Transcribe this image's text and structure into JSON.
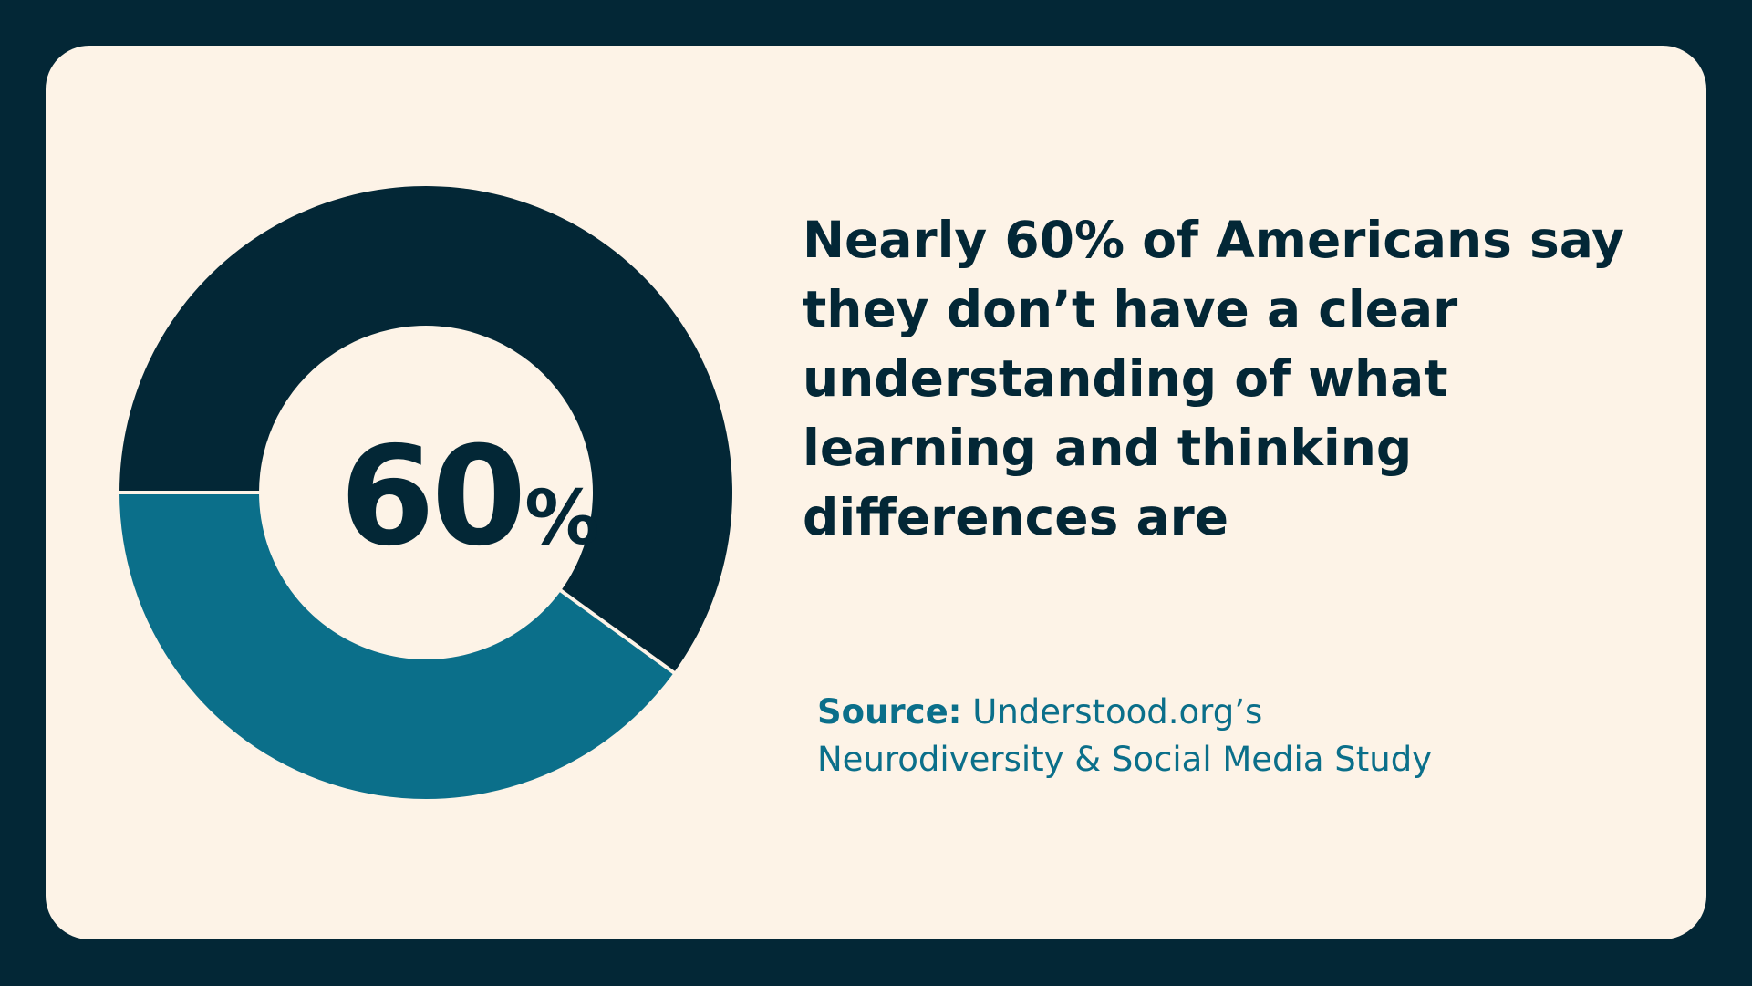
{
  "headline": "Nearly 60% of Americans say they don’t have a clear understanding of what learning and thinking differences are",
  "center_label": {
    "number": "60",
    "unit": "%"
  },
  "source": {
    "label": "Source:",
    "line1": "Understood.org’s",
    "line2": "Neurodiversity & Social Media Study"
  },
  "colors": {
    "background": "#032736",
    "card": "#fdf3e7",
    "primary": "#032736",
    "accent": "#0b6f8a"
  },
  "chart_data": {
    "type": "pie",
    "subtype": "donut",
    "series": [
      {
        "value": 60,
        "color": "#032736"
      },
      {
        "value": 40,
        "color": "#0b6f8a"
      }
    ]
  }
}
